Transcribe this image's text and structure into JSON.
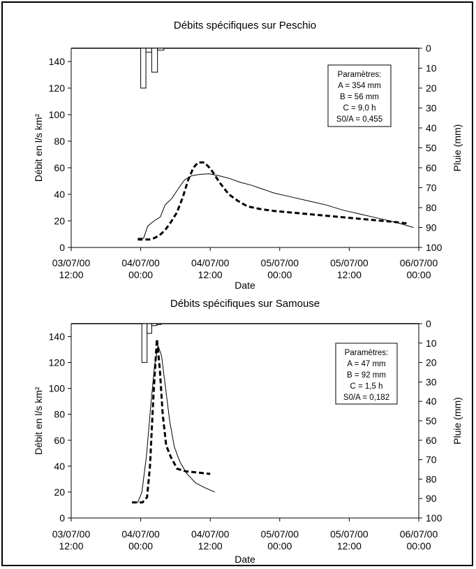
{
  "chart_data": [
    {
      "type": "line",
      "title": "Débits spécifiques sur Peschio",
      "xlabel": "Date",
      "ylabel": "Débit en l/s km²",
      "y2label": "Pluie (mm)",
      "ylim": [
        0,
        150
      ],
      "y2lim": [
        0,
        100
      ],
      "y2_inverted": true,
      "xlim_hours": [
        0,
        60
      ],
      "x_ticks": [
        {
          "hour": 0,
          "date": "03/07/00",
          "time": "12:00"
        },
        {
          "hour": 12,
          "date": "04/07/00",
          "time": "00:00"
        },
        {
          "hour": 24,
          "date": "04/07/00",
          "time": "12:00"
        },
        {
          "hour": 36,
          "date": "05/07/00",
          "time": "00:00"
        },
        {
          "hour": 48,
          "date": "05/07/00",
          "time": "12:00"
        },
        {
          "hour": 60,
          "date": "06/07/00",
          "time": "00:00"
        }
      ],
      "y_ticks": [
        "0",
        "20",
        "40",
        "60",
        "80",
        "100",
        "120",
        "140"
      ],
      "y2_ticks": [
        "0",
        "10",
        "20",
        "30",
        "40",
        "50",
        "60",
        "70",
        "80",
        "90",
        "100"
      ],
      "params": {
        "heading": "Paramètres:",
        "lines": [
          "A = 354 mm",
          "B = 56 mm",
          "C = 9,0 h",
          "S0/A = 0,455"
        ]
      },
      "rain": [
        {
          "start": 12.0,
          "end": 12.9,
          "mm": 20
        },
        {
          "start": 12.9,
          "end": 13.9,
          "mm": 2
        },
        {
          "start": 13.9,
          "end": 14.9,
          "mm": 12
        },
        {
          "start": 14.9,
          "end": 16.0,
          "mm": 1
        }
      ],
      "series": [
        {
          "style": "solid",
          "points": [
            [
              11.5,
              7
            ],
            [
              12.5,
              7
            ],
            [
              13.2,
              16
            ],
            [
              14.3,
              20
            ],
            [
              15.4,
              23
            ],
            [
              16.2,
              32
            ],
            [
              17.4,
              37
            ],
            [
              18.6,
              45
            ],
            [
              19.6,
              51
            ],
            [
              20.8,
              54
            ],
            [
              22.2,
              55
            ],
            [
              23.8,
              55.5
            ],
            [
              25.5,
              54
            ],
            [
              27.3,
              52
            ],
            [
              29.2,
              49
            ],
            [
              31,
              47
            ],
            [
              33,
              44
            ],
            [
              35,
              41
            ],
            [
              38,
              38
            ],
            [
              41,
              35
            ],
            [
              44,
              32
            ],
            [
              47,
              28
            ],
            [
              50,
              25
            ],
            [
              53,
              22
            ],
            [
              56,
              19
            ],
            [
              59.1,
              15
            ]
          ]
        },
        {
          "style": "dashed",
          "points": [
            [
              11.5,
              6
            ],
            [
              12.5,
              6
            ],
            [
              13.5,
              6
            ],
            [
              14.3,
              7
            ],
            [
              15.2,
              9
            ],
            [
              16.2,
              13
            ],
            [
              17.2,
              19
            ],
            [
              18.2,
              26
            ],
            [
              19.2,
              37
            ],
            [
              20.2,
              51
            ],
            [
              21.1,
              60
            ],
            [
              21.9,
              64
            ],
            [
              23,
              64
            ],
            [
              24.1,
              59
            ],
            [
              25.6,
              49
            ],
            [
              27.2,
              40
            ],
            [
              28.8,
              35
            ],
            [
              30.4,
              31
            ],
            [
              32.5,
              29
            ],
            [
              35,
              27.5
            ],
            [
              40,
              25.5
            ],
            [
              45,
              23.5
            ],
            [
              50,
              21.5
            ],
            [
              55,
              19.5
            ],
            [
              58.3,
              18
            ]
          ]
        }
      ]
    },
    {
      "type": "line",
      "title": "Débits spécifiques sur Samouse",
      "xlabel": "Date",
      "ylabel": "Débit en l/s km²",
      "y2label": "Pluie (mm)",
      "ylim": [
        0,
        150
      ],
      "y2lim": [
        0,
        100
      ],
      "y2_inverted": true,
      "xlim_hours": [
        0,
        60
      ],
      "x_ticks": [
        {
          "hour": 0,
          "date": "03/07/00",
          "time": "12:00"
        },
        {
          "hour": 12,
          "date": "04/07/00",
          "time": "00:00"
        },
        {
          "hour": 24,
          "date": "04/07/00",
          "time": "12:00"
        },
        {
          "hour": 36,
          "date": "05/07/00",
          "time": "00:00"
        },
        {
          "hour": 48,
          "date": "05/07/00",
          "time": "12:00"
        },
        {
          "hour": 60,
          "date": "06/07/00",
          "time": "00:00"
        }
      ],
      "y_ticks": [
        "0",
        "20",
        "40",
        "60",
        "80",
        "100",
        "120",
        "140"
      ],
      "y2_ticks": [
        "0",
        "10",
        "20",
        "30",
        "40",
        "50",
        "60",
        "70",
        "80",
        "90",
        "100"
      ],
      "params": {
        "heading": "Paramètres:",
        "lines": [
          "A = 47 mm",
          "B = 92 mm",
          "C = 1,5 h",
          "S0/A = 0,182"
        ]
      },
      "rain": [
        {
          "start": 12.2,
          "end": 13.1,
          "mm": 20
        },
        {
          "start": 13.1,
          "end": 13.9,
          "mm": 5
        },
        {
          "start": 13.9,
          "end": 14.8,
          "mm": 1
        },
        {
          "start": 14.8,
          "end": 15.5,
          "mm": 0.5
        }
      ],
      "series": [
        {
          "style": "solid",
          "points": [
            [
              10.5,
              12
            ],
            [
              11.5,
              12
            ],
            [
              12.2,
              20
            ],
            [
              13,
              48
            ],
            [
              13.7,
              85
            ],
            [
              14.4,
              118
            ],
            [
              15,
              133
            ],
            [
              15.6,
              125
            ],
            [
              16.3,
              100
            ],
            [
              17,
              75
            ],
            [
              17.8,
              55
            ],
            [
              18.8,
              43
            ],
            [
              20,
              34
            ],
            [
              21.5,
              27
            ],
            [
              23,
              23.5
            ],
            [
              24.8,
              20
            ]
          ]
        },
        {
          "style": "dashed",
          "points": [
            [
              10.5,
              12
            ],
            [
              12.3,
              12
            ],
            [
              13.1,
              16
            ],
            [
              13.6,
              40
            ],
            [
              14.2,
              95
            ],
            [
              14.8,
              138
            ],
            [
              15.3,
              115
            ],
            [
              15.8,
              80
            ],
            [
              16.4,
              56
            ],
            [
              17.2,
              47
            ],
            [
              18.3,
              38
            ],
            [
              19.8,
              36
            ],
            [
              22,
              35
            ],
            [
              24,
              34
            ]
          ]
        }
      ]
    }
  ]
}
